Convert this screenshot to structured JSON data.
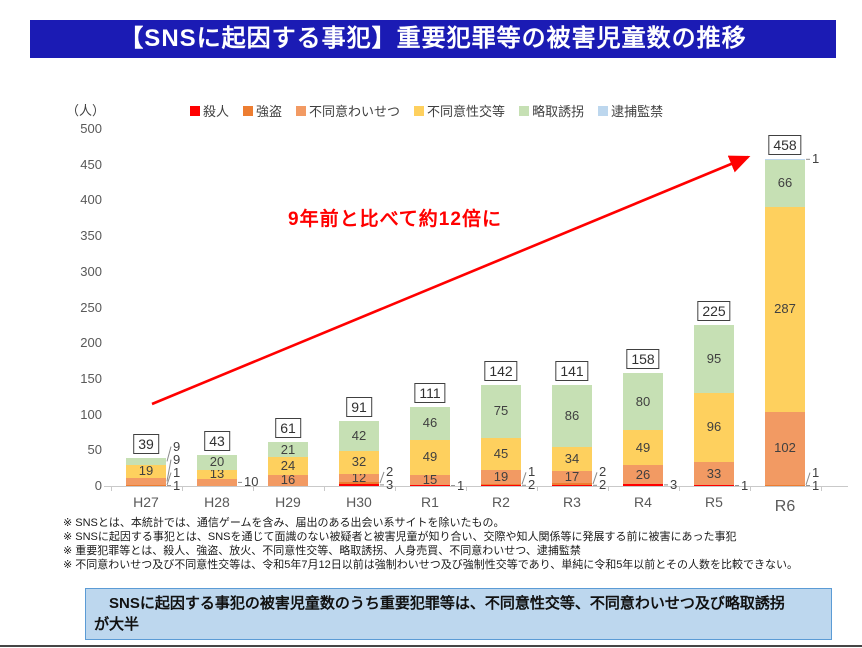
{
  "page": {
    "title": "【SNSに起因する事犯】重要犯罪等の被害児童数の推移"
  },
  "chart_data": {
    "type": "bar",
    "stacked": true,
    "title": "【SNSに起因する事犯】重要犯罪等の被害児童数の推移",
    "unit_label": "（人）",
    "ylim": [
      0,
      500
    ],
    "ytick_step": 50,
    "grid": false,
    "legend_position": "top",
    "categories": [
      "H27",
      "H28",
      "H29",
      "H30",
      "R1",
      "R2",
      "R3",
      "R4",
      "R5",
      "R6"
    ],
    "series": [
      {
        "name": "殺人",
        "color": "#ff0000",
        "values": [
          1,
          0,
          0,
          3,
          1,
          2,
          2,
          3,
          1,
          1
        ]
      },
      {
        "name": "強盗",
        "color": "#ed7d31",
        "values": [
          1,
          0,
          0,
          2,
          0,
          1,
          2,
          0,
          0,
          1
        ]
      },
      {
        "name": "不同意わいせつ",
        "color": "#f29a63",
        "values": [
          9,
          10,
          16,
          12,
          15,
          19,
          17,
          26,
          33,
          102
        ]
      },
      {
        "name": "不同意性交等",
        "color": "#fed05e",
        "values": [
          19,
          13,
          24,
          32,
          49,
          45,
          34,
          49,
          96,
          287
        ]
      },
      {
        "name": "略取誘拐",
        "color": "#c6e0b4",
        "values": [
          9,
          20,
          21,
          42,
          46,
          75,
          86,
          80,
          95,
          66
        ]
      },
      {
        "name": "逮捕監禁",
        "color": "#bdd7ee",
        "values": [
          0,
          0,
          0,
          0,
          0,
          0,
          0,
          0,
          0,
          1
        ]
      }
    ],
    "totals": [
      39,
      43,
      61,
      91,
      111,
      142,
      141,
      158,
      225,
      458
    ],
    "annotation": {
      "text": "9年前と比べて約12倍に",
      "color": "#ff0000"
    },
    "arrow": {
      "description": "red arrow from above H27 bar to the R6 total label"
    }
  },
  "footnotes": [
    "※ SNSとは、本統計では、通信ゲームを含み、届出のある出会い系サイトを除いたもの。",
    "※ SNSに起因する事犯とは、SNSを通じて面識のない被疑者と被害児童が知り合い、交際や知人関係等に発展する前に被害にあった事犯",
    "※ 重要犯罪等とは、殺人、強盗、放火、不同意性交等、略取誘拐、人身売買、不同意わいせつ、逮捕監禁",
    "※ 不同意わいせつ及び不同意性交等は、令和5年7月12日以前は強制わいせつ及び強制性交等であり、単純に令和5年以前とその人数を比較できない。"
  ],
  "summary_box": {
    "line1": "　SNSに起因する事犯の被害児童数のうち重要犯罪等は、不同意性交等、不同意わいせつ及び略取誘拐",
    "line2": "が大半"
  }
}
